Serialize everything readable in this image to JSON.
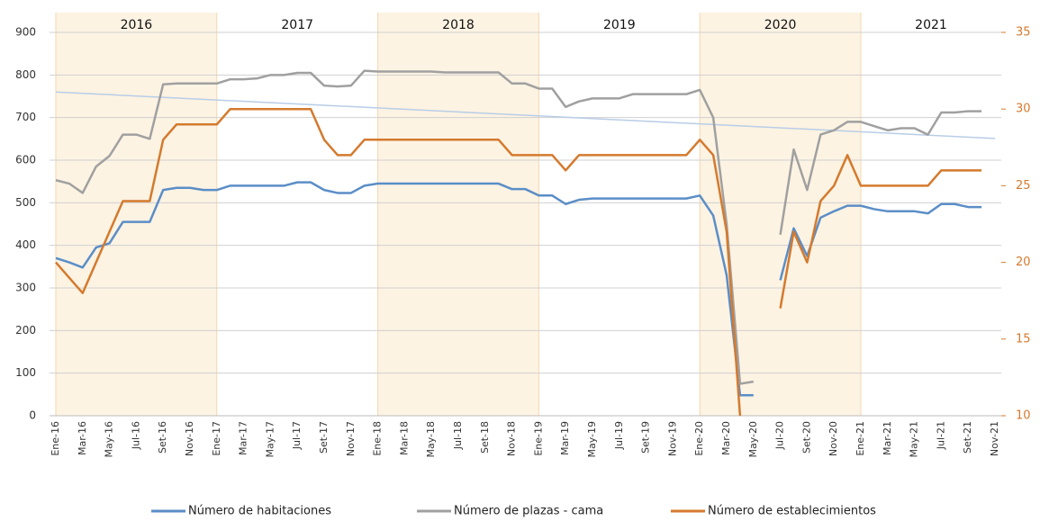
{
  "chart_data": {
    "type": "line",
    "categories": [
      "Ene-16",
      null,
      "Mar-16",
      null,
      "May-16",
      null,
      "Jul-16",
      null,
      "Set-16",
      null,
      "Nov-16",
      null,
      "Ene-17",
      null,
      "Mar-17",
      null,
      "May-17",
      null,
      "Jul-17",
      null,
      "Set-17",
      null,
      "Nov-17",
      null,
      "Ene-18",
      null,
      "Mar-18",
      null,
      "May-18",
      null,
      "Jul-18",
      null,
      "Set-18",
      null,
      "Nov-18",
      null,
      "Ene-19",
      null,
      "Mar-19",
      null,
      "May-19",
      null,
      "Jul-19",
      null,
      "Set-19",
      null,
      "Nov-19",
      null,
      "Ene-20",
      null,
      "Mar-20",
      null,
      "May-20",
      null,
      "Jul-20",
      null,
      "Set-20",
      null,
      "Nov-20",
      null,
      "Ene-21",
      null,
      "Mar-21",
      null,
      "May-21",
      null,
      "Jul-21",
      null,
      "Set-21",
      null,
      "Nov-21"
    ],
    "series": [
      {
        "name": "Número de habitaciones",
        "color": "#5b8ec7",
        "values": [
          370,
          360,
          348,
          395,
          405,
          455,
          455,
          455,
          530,
          535,
          535,
          530,
          530,
          540,
          540,
          540,
          540,
          540,
          548,
          548,
          530,
          523,
          523,
          540,
          545,
          545,
          545,
          545,
          545,
          545,
          545,
          545,
          545,
          545,
          532,
          532,
          517,
          517,
          497,
          507,
          510,
          510,
          510,
          510,
          510,
          510,
          510,
          510,
          517,
          470,
          330,
          48,
          48,
          null,
          318,
          440,
          375,
          465,
          480,
          493,
          493,
          485,
          480,
          480,
          480,
          475,
          497,
          497,
          490,
          490,
          null
        ]
      },
      {
        "name": "Número de plazas - cama",
        "color": "#a0a0a0",
        "values": [
          553,
          545,
          523,
          585,
          610,
          660,
          660,
          650,
          778,
          780,
          780,
          780,
          780,
          790,
          790,
          792,
          800,
          800,
          805,
          805,
          775,
          773,
          775,
          810,
          808,
          808,
          808,
          808,
          808,
          806,
          806,
          806,
          806,
          806,
          780,
          780,
          768,
          768,
          725,
          738,
          745,
          745,
          745,
          755,
          755,
          755,
          755,
          755,
          765,
          700,
          450,
          75,
          80,
          null,
          425,
          625,
          530,
          660,
          670,
          690,
          690,
          680,
          670,
          675,
          675,
          660,
          712,
          712,
          715,
          715,
          null
        ]
      },
      {
        "name": "Número de establecimientos",
        "color": "#d47a2e",
        "axis": "y2",
        "values": [
          20,
          19,
          18,
          20,
          22,
          24,
          24,
          24,
          28,
          29,
          29,
          29,
          29,
          30,
          30,
          30,
          30,
          30,
          30,
          30,
          28,
          27,
          27,
          28,
          28,
          28,
          28,
          28,
          28,
          28,
          28,
          28,
          28,
          28,
          27,
          27,
          27,
          27,
          26,
          27,
          27,
          27,
          27,
          27,
          27,
          27,
          27,
          27,
          28,
          27,
          22,
          10,
          null,
          null,
          17,
          22,
          20,
          24,
          25,
          27,
          25,
          25,
          25,
          25,
          25,
          25,
          26,
          26,
          26,
          26,
          null
        ]
      }
    ],
    "trendline": [
      760,
      651
    ],
    "years": [
      {
        "label": "2016",
        "shaded": true
      },
      {
        "label": "2017",
        "shaded": false
      },
      {
        "label": "2018",
        "shaded": true
      },
      {
        "label": "2019",
        "shaded": false
      },
      {
        "label": "2020",
        "shaded": true
      },
      {
        "label": "2021",
        "shaded": false
      }
    ],
    "ylim": [
      0,
      900
    ],
    "yticks": [
      0,
      100,
      200,
      300,
      400,
      500,
      600,
      700,
      800,
      900
    ],
    "y2lim": [
      10,
      35
    ],
    "y2ticks": [
      10,
      15,
      20,
      25,
      30,
      35
    ],
    "grid": true,
    "legend": "bottom"
  }
}
